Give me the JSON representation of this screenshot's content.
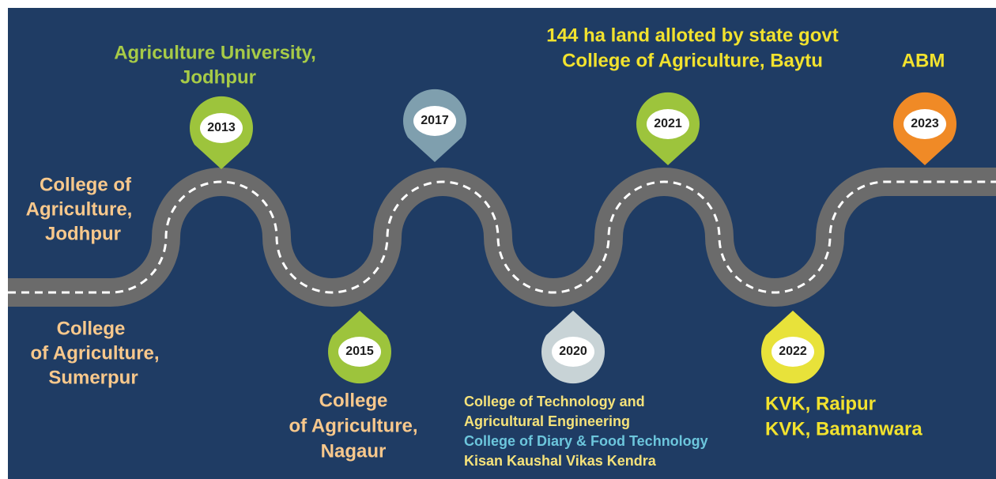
{
  "start": {
    "above": [
      "College of",
      "Agriculture,",
      "Jodhpur"
    ],
    "below": [
      "College",
      "of Agriculture,",
      "Sumerpur"
    ]
  },
  "milestones": [
    {
      "year": "2013",
      "lines": [
        "Agriculture University,",
        "Jodhpur"
      ]
    },
    {
      "year": "2015",
      "lines": [
        "College",
        "of Agriculture,",
        "Nagaur"
      ]
    },
    {
      "year": "2017"
    },
    {
      "year": "2020",
      "lines": [
        "College of Technology and",
        "Agricultural  Engineering",
        "College of Diary & Food Technology",
        "Kisan Kaushal Vikas Kendra"
      ]
    },
    {
      "year": "2021",
      "lines": [
        "144 ha land alloted by state govt",
        "College of Agriculture, Baytu"
      ]
    },
    {
      "year": "2022",
      "lines": [
        "KVK, Raipur",
        "KVK, Bamanwara"
      ]
    },
    {
      "year": "2023",
      "lines": [
        "ABM"
      ]
    }
  ]
}
